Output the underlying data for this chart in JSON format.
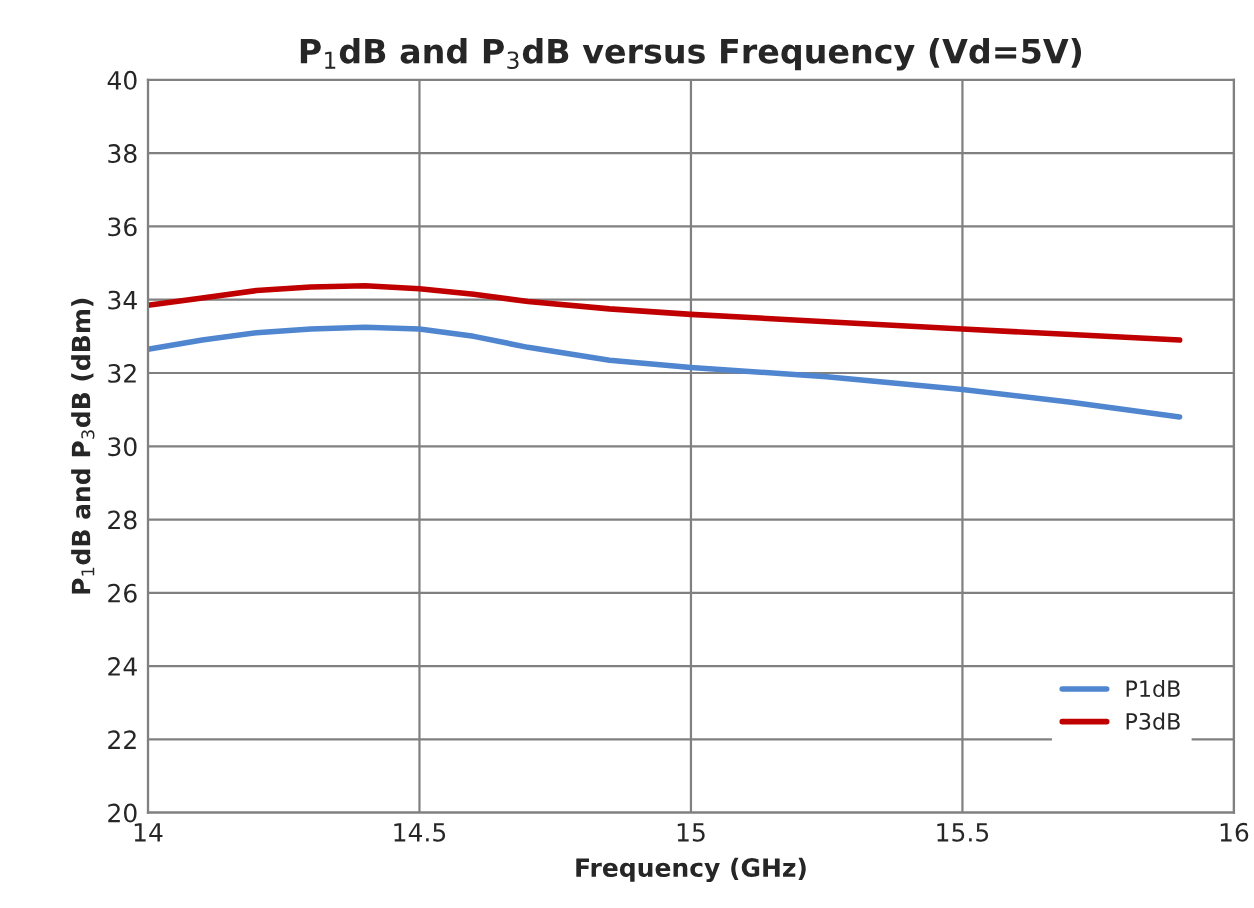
{
  "chart_data": {
    "type": "line",
    "title": "P$_{1}$dB and P$_{3}$dB versus Frequency (Vd=5V)",
    "xlabel": "Frequency (GHz)",
    "ylabel": "P$_{1}$dB and P$_{3}$dB (dBm)",
    "x": [
      14,
      14.1,
      14.2,
      14.3,
      14.4,
      14.5,
      14.6,
      14.7,
      14.85,
      15,
      15.25,
      15.5,
      15.7,
      15.9
    ],
    "series": [
      {
        "name": "P1dB",
        "color": "#4f86cf",
        "values": [
          32.65,
          32.9,
          33.1,
          33.2,
          33.25,
          33.2,
          33.0,
          32.7,
          32.35,
          32.15,
          31.9,
          31.55,
          31.2,
          30.8
        ]
      },
      {
        "name": "P3dB",
        "color": "#c00000",
        "values": [
          33.85,
          34.05,
          34.25,
          34.35,
          34.38,
          34.3,
          34.15,
          33.95,
          33.75,
          33.6,
          33.4,
          33.2,
          33.05,
          32.9
        ]
      }
    ],
    "xlim": [
      14,
      16
    ],
    "xticks": [
      14,
      14.5,
      15,
      15.5,
      16
    ],
    "ylim": [
      20,
      40
    ],
    "yticks": [
      20,
      22,
      24,
      26,
      28,
      30,
      32,
      34,
      36,
      38,
      40
    ],
    "grid": true,
    "legend": "bottom right"
  }
}
